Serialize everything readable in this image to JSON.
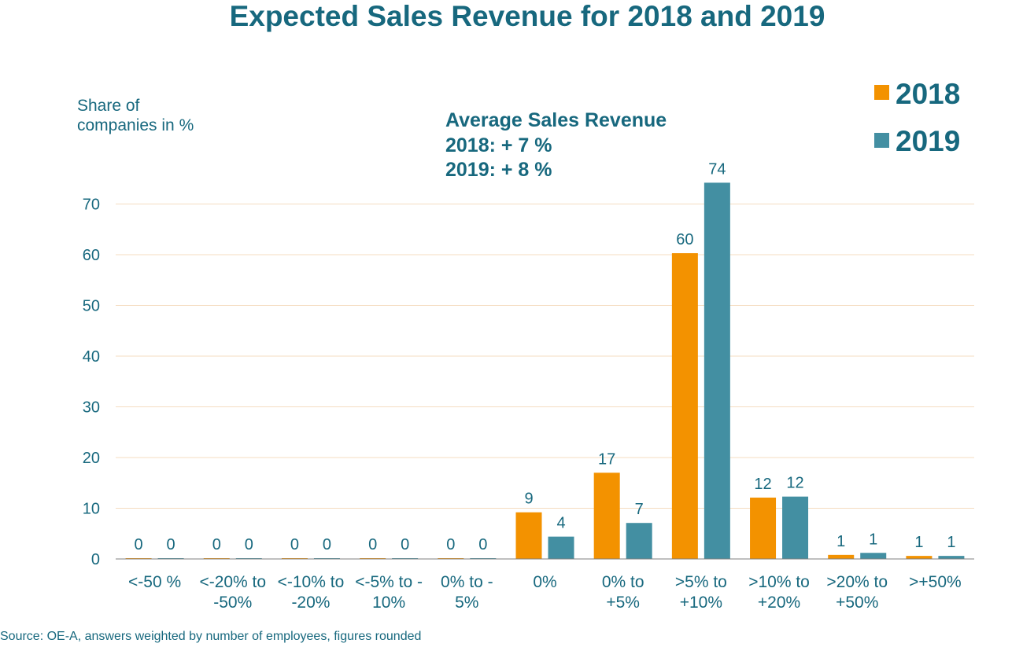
{
  "colors": {
    "series_2018": "#f39200",
    "series_2019": "#438fa2",
    "text": "#17687e",
    "grid": "#f5dcc0"
  },
  "chart_data": {
    "type": "bar",
    "title": "Expected Sales Revenue for 2018 and 2019",
    "ylabel": [
      "Share of",
      "companies in %"
    ],
    "annotation": [
      "Average Sales Revenue",
      "2018: + 7 %",
      "2019: + 8 %"
    ],
    "ylim": [
      0,
      74
    ],
    "yticks": [
      0,
      10,
      20,
      30,
      40,
      50,
      60,
      70
    ],
    "grid": true,
    "legend_position": "top-right",
    "categories": [
      [
        "<-50 %"
      ],
      [
        "<-20% to",
        "-50%"
      ],
      [
        "<-10% to",
        "-20%"
      ],
      [
        "<-5% to -",
        "10%"
      ],
      [
        "0% to -",
        "5%"
      ],
      [
        "0%"
      ],
      [
        "0% to",
        "+5%"
      ],
      [
        ">5% to",
        "+10%"
      ],
      [
        ">10% to",
        "+20%"
      ],
      [
        ">20% to",
        "+50%"
      ],
      [
        ">+50%"
      ]
    ],
    "series": [
      {
        "name": "2018",
        "values": [
          0,
          0,
          0,
          0,
          0,
          9.2,
          17,
          60.3,
          12.1,
          0.8,
          0.6
        ],
        "labels": [
          "0",
          "0",
          "0",
          "0",
          "0",
          "9",
          "17",
          "60",
          "12",
          "1",
          "1"
        ]
      },
      {
        "name": "2019",
        "values": [
          0,
          0,
          0,
          0,
          0,
          4.4,
          7.1,
          74.2,
          12.3,
          1.2,
          0.6
        ],
        "labels": [
          "0",
          "0",
          "0",
          "0",
          "0",
          "4",
          "7",
          "74",
          "12",
          "1",
          "1"
        ]
      }
    ],
    "source": "Source: OE-A, answers weighted by number of employees, figures rounded"
  }
}
